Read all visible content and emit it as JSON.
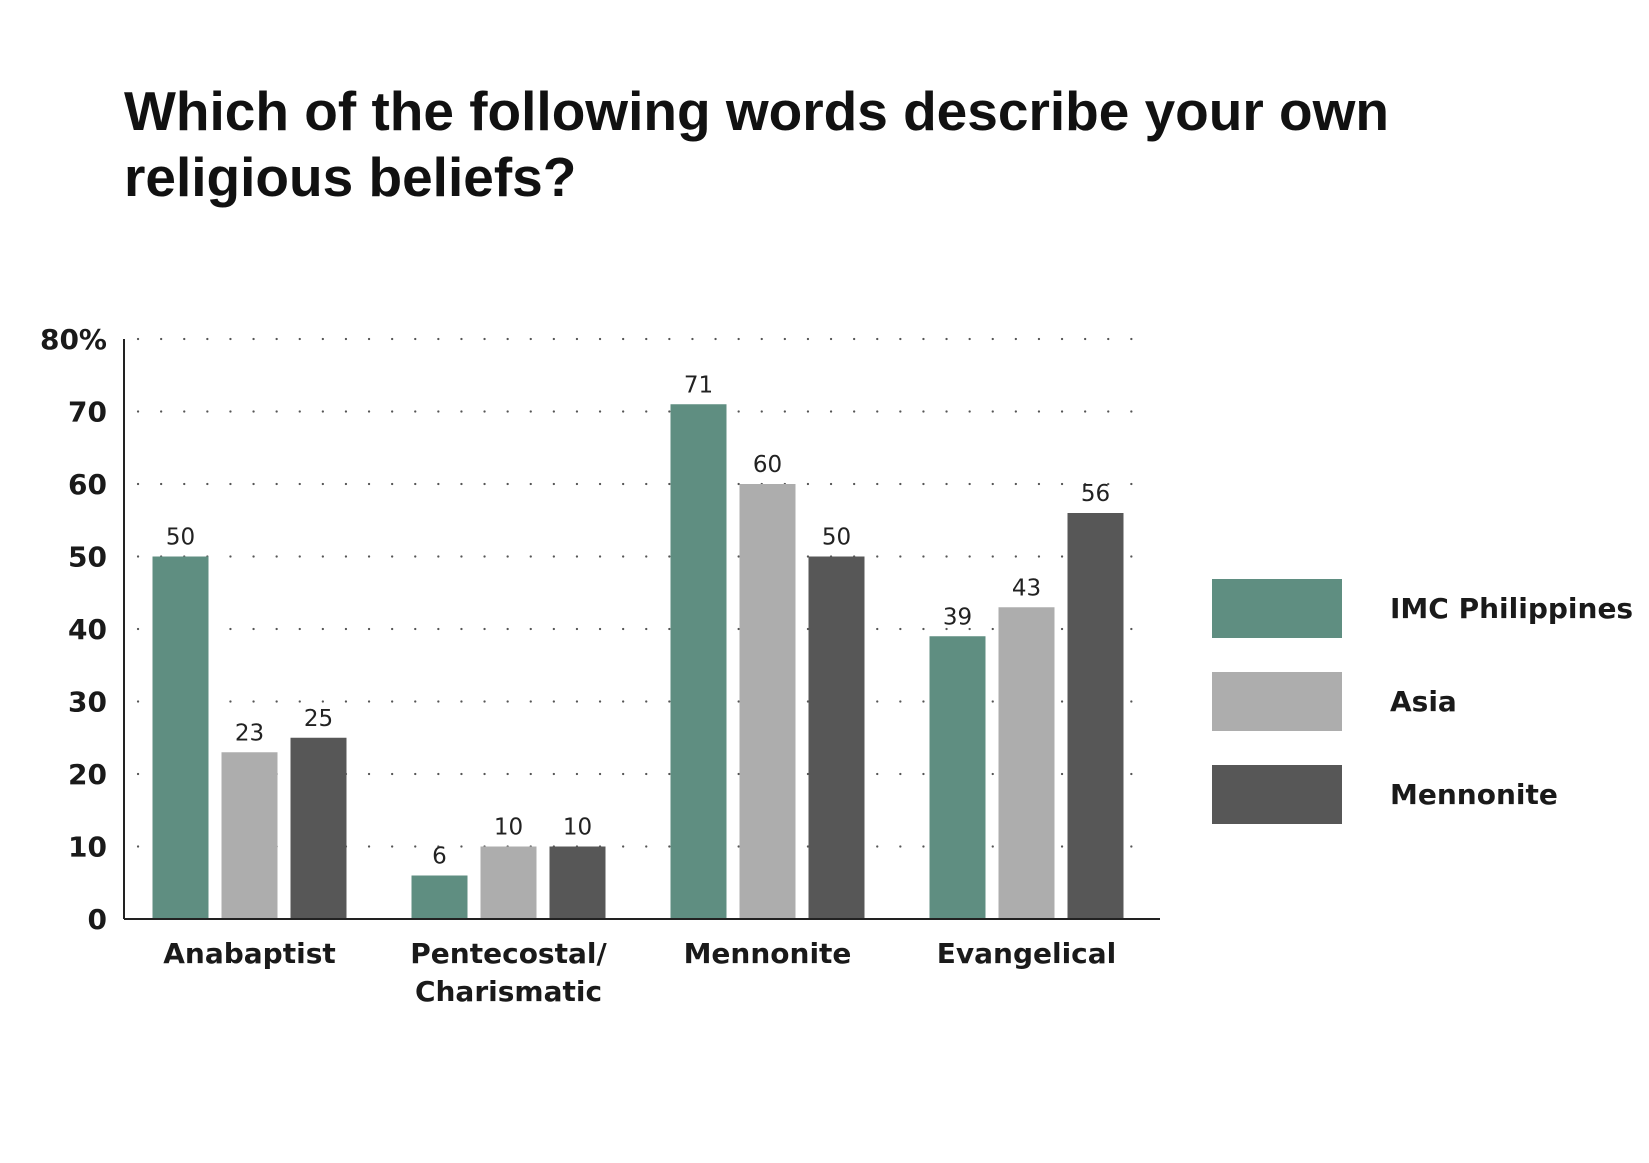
{
  "chart_data": {
    "type": "bar",
    "title": "Which of the following words describe your own religious beliefs?",
    "categories": [
      [
        "Anabaptist"
      ],
      [
        "Pentecostal/",
        "Charismatic"
      ],
      [
        "Mennonite"
      ],
      [
        "Evangelical"
      ]
    ],
    "series": [
      {
        "name": "IMC Philippines",
        "color": "#5f8e81",
        "values": [
          50,
          6,
          71,
          39
        ]
      },
      {
        "name": "Asia",
        "color": "#adadad",
        "values": [
          23,
          10,
          60,
          43
        ]
      },
      {
        "name": "Mennonite",
        "color": "#575757",
        "values": [
          25,
          10,
          50,
          56
        ]
      }
    ],
    "ylim": [
      0,
      80
    ],
    "yticks": [
      "0",
      "10",
      "20",
      "30",
      "40",
      "50",
      "60",
      "70",
      "80%"
    ],
    "grid": "dotted",
    "legend_position": "right"
  }
}
